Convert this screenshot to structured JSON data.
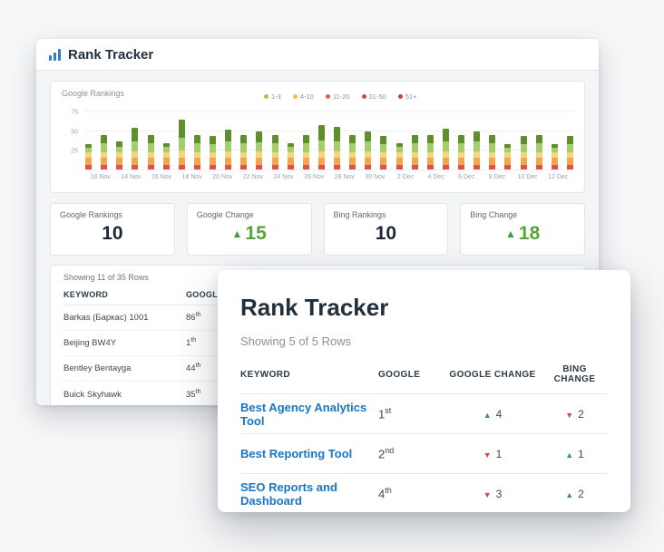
{
  "back_window": {
    "title": "Rank Tracker",
    "chart": {
      "title": "Google Rankings",
      "legend": [
        {
          "label": "1-3",
          "color": "#a8c63f"
        },
        {
          "label": "4-10",
          "color": "#f0c04a"
        },
        {
          "label": "11-20",
          "color": "#e25d50"
        },
        {
          "label": "21-50",
          "color": "#d04a44"
        },
        {
          "label": "51+",
          "color": "#c53e38"
        }
      ]
    },
    "stats": [
      {
        "label": "Google Rankings",
        "value": "10"
      },
      {
        "label": "Google Change",
        "value": "15",
        "direction": "up"
      },
      {
        "label": "Bing Rankings",
        "value": "10"
      },
      {
        "label": "Bing Change",
        "value": "18",
        "direction": "up"
      }
    ],
    "table": {
      "showing": "Showing 11 of 35 Rows",
      "headers": {
        "keyword": "KEYWORD",
        "google": "GOOGLE"
      },
      "rows": [
        {
          "keyword": "Barkas (Баркас) 1001",
          "rank": "86",
          "suffix": "th"
        },
        {
          "keyword": "Beijing BW4Y",
          "rank": "1",
          "suffix": "th"
        },
        {
          "keyword": "Bentley Bentayga",
          "rank": "44",
          "suffix": "th"
        },
        {
          "keyword": "Buick Skyhawk",
          "rank": "35",
          "suffix": "th"
        }
      ]
    }
  },
  "front_window": {
    "title": "Rank Tracker",
    "showing": "Showing 5 of 5 Rows",
    "headers": {
      "keyword": "KEYWORD",
      "google": "GOOGLE",
      "google_change": "GOOGLE CHANGE",
      "bing_change": "BING CHANGE"
    },
    "rows": [
      {
        "keyword": "Best Agency Analytics Tool",
        "rank": "1",
        "suffix": "st",
        "google_change": {
          "dir": "up",
          "value": "4"
        },
        "bing_change": {
          "dir": "down",
          "value": "2"
        }
      },
      {
        "keyword": "Best Reporting Tool",
        "rank": "2",
        "suffix": "nd",
        "google_change": {
          "dir": "down",
          "value": "1"
        },
        "bing_change": {
          "dir": "up",
          "value": "1"
        }
      },
      {
        "keyword": "SEO Reports and Dashboard",
        "rank": "4",
        "suffix": "th",
        "google_change": {
          "dir": "down",
          "value": "3"
        },
        "bing_change": {
          "dir": "up",
          "value": "2"
        }
      }
    ]
  },
  "chart_data": {
    "type": "bar",
    "stacked": true,
    "title": "Google Rankings",
    "ylim": [
      0,
      80
    ],
    "yticks": [
      25,
      50,
      75
    ],
    "grid": "dotted-horizontal",
    "legend_position": "top-center",
    "segment_order_bottom_to_top": [
      "51+",
      "21-50",
      "11-20",
      "4-10",
      "1-3"
    ],
    "segment_colors": [
      "#d9534f",
      "#f5a54a",
      "#f2d57e",
      "#a5ce6a",
      "#5d8f2b"
    ],
    "x_labels": [
      "10 Nov",
      "14 Nov",
      "16 Nov",
      "18 Nov",
      "20 Nov",
      "22 Nov",
      "24 Nov",
      "26 Nov",
      "28 Nov",
      "30 Nov",
      "2 Dec",
      "4 Dec",
      "6 Dec",
      "8 Dec",
      "10 Dec",
      "12 Dec"
    ],
    "x_labels_note": "one label per two bars",
    "bars": [
      [
        6,
        9,
        7,
        6,
        5
      ],
      [
        6,
        9,
        7,
        12,
        11
      ],
      [
        6,
        9,
        7,
        8,
        6
      ],
      [
        6,
        9,
        8,
        13,
        18
      ],
      [
        6,
        9,
        7,
        12,
        11
      ],
      [
        6,
        9,
        7,
        7,
        5
      ],
      [
        6,
        9,
        10,
        16,
        24
      ],
      [
        6,
        9,
        7,
        12,
        11
      ],
      [
        6,
        9,
        7,
        11,
        11
      ],
      [
        6,
        9,
        8,
        13,
        16
      ],
      [
        6,
        9,
        7,
        12,
        11
      ],
      [
        6,
        9,
        8,
        12,
        14
      ],
      [
        6,
        9,
        7,
        12,
        11
      ],
      [
        6,
        9,
        7,
        7,
        5
      ],
      [
        6,
        9,
        7,
        12,
        11
      ],
      [
        6,
        9,
        9,
        14,
        20
      ],
      [
        6,
        9,
        8,
        13,
        19
      ],
      [
        6,
        9,
        7,
        12,
        11
      ],
      [
        6,
        9,
        8,
        13,
        14
      ],
      [
        6,
        9,
        7,
        11,
        11
      ],
      [
        6,
        9,
        7,
        7,
        5
      ],
      [
        6,
        9,
        7,
        12,
        11
      ],
      [
        6,
        9,
        7,
        12,
        11
      ],
      [
        6,
        9,
        8,
        13,
        17
      ],
      [
        6,
        9,
        7,
        12,
        11
      ],
      [
        6,
        9,
        8,
        13,
        14
      ],
      [
        6,
        9,
        7,
        12,
        11
      ],
      [
        6,
        9,
        7,
        6,
        5
      ],
      [
        6,
        9,
        7,
        11,
        11
      ],
      [
        6,
        9,
        7,
        12,
        11
      ],
      [
        6,
        9,
        7,
        6,
        5
      ],
      [
        6,
        9,
        7,
        11,
        11
      ]
    ]
  }
}
